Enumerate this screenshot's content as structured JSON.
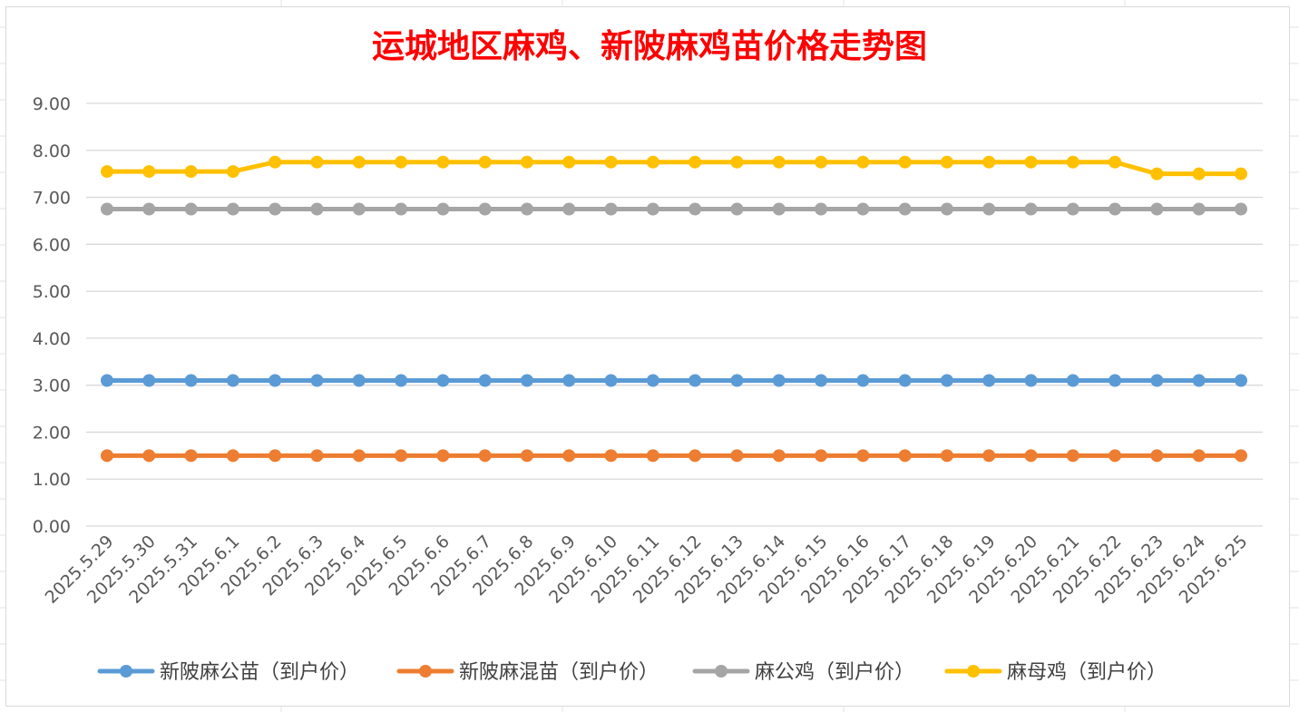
{
  "chart_data": {
    "type": "line",
    "title": "运城地区麻鸡、新陂麻鸡苗价格走势图",
    "xlabel": "",
    "ylabel": "",
    "ylim": [
      0,
      9
    ],
    "yticks": [
      "0.00",
      "1.00",
      "2.00",
      "3.00",
      "4.00",
      "5.00",
      "6.00",
      "7.00",
      "8.00",
      "9.00"
    ],
    "grid": true,
    "legend_position": "bottom",
    "categories": [
      "2025.5.29",
      "2025.5.30",
      "2025.5.31",
      "2025.6.1",
      "2025.6.2",
      "2025.6.3",
      "2025.6.4",
      "2025.6.5",
      "2025.6.6",
      "2025.6.7",
      "2025.6.8",
      "2025.6.9",
      "2025.6.10",
      "2025.6.11",
      "2025.6.12",
      "2025.6.13",
      "2025.6.14",
      "2025.6.15",
      "2025.6.16",
      "2025.6.17",
      "2025.6.18",
      "2025.6.19",
      "2025.6.20",
      "2025.6.21",
      "2025.6.22",
      "2025.6.23",
      "2025.6.24",
      "2025.6.25"
    ],
    "series": [
      {
        "name": "新陂麻公苗（到户价）",
        "color": "#5b9bd5",
        "values": [
          3.1,
          3.1,
          3.1,
          3.1,
          3.1,
          3.1,
          3.1,
          3.1,
          3.1,
          3.1,
          3.1,
          3.1,
          3.1,
          3.1,
          3.1,
          3.1,
          3.1,
          3.1,
          3.1,
          3.1,
          3.1,
          3.1,
          3.1,
          3.1,
          3.1,
          3.1,
          3.1,
          3.1
        ]
      },
      {
        "name": "新陂麻混苗（到户价）",
        "color": "#ed7d31",
        "values": [
          1.5,
          1.5,
          1.5,
          1.5,
          1.5,
          1.5,
          1.5,
          1.5,
          1.5,
          1.5,
          1.5,
          1.5,
          1.5,
          1.5,
          1.5,
          1.5,
          1.5,
          1.5,
          1.5,
          1.5,
          1.5,
          1.5,
          1.5,
          1.5,
          1.5,
          1.5,
          1.5,
          1.5
        ]
      },
      {
        "name": "麻公鸡（到户价）",
        "color": "#a5a5a5",
        "values": [
          6.75,
          6.75,
          6.75,
          6.75,
          6.75,
          6.75,
          6.75,
          6.75,
          6.75,
          6.75,
          6.75,
          6.75,
          6.75,
          6.75,
          6.75,
          6.75,
          6.75,
          6.75,
          6.75,
          6.75,
          6.75,
          6.75,
          6.75,
          6.75,
          6.75,
          6.75,
          6.75,
          6.75
        ]
      },
      {
        "name": "麻母鸡（到户价）",
        "color": "#ffc000",
        "values": [
          7.55,
          7.55,
          7.55,
          7.55,
          7.75,
          7.75,
          7.75,
          7.75,
          7.75,
          7.75,
          7.75,
          7.75,
          7.75,
          7.75,
          7.75,
          7.75,
          7.75,
          7.75,
          7.75,
          7.75,
          7.75,
          7.75,
          7.75,
          7.75,
          7.75,
          7.5,
          7.5,
          7.5
        ]
      }
    ]
  }
}
